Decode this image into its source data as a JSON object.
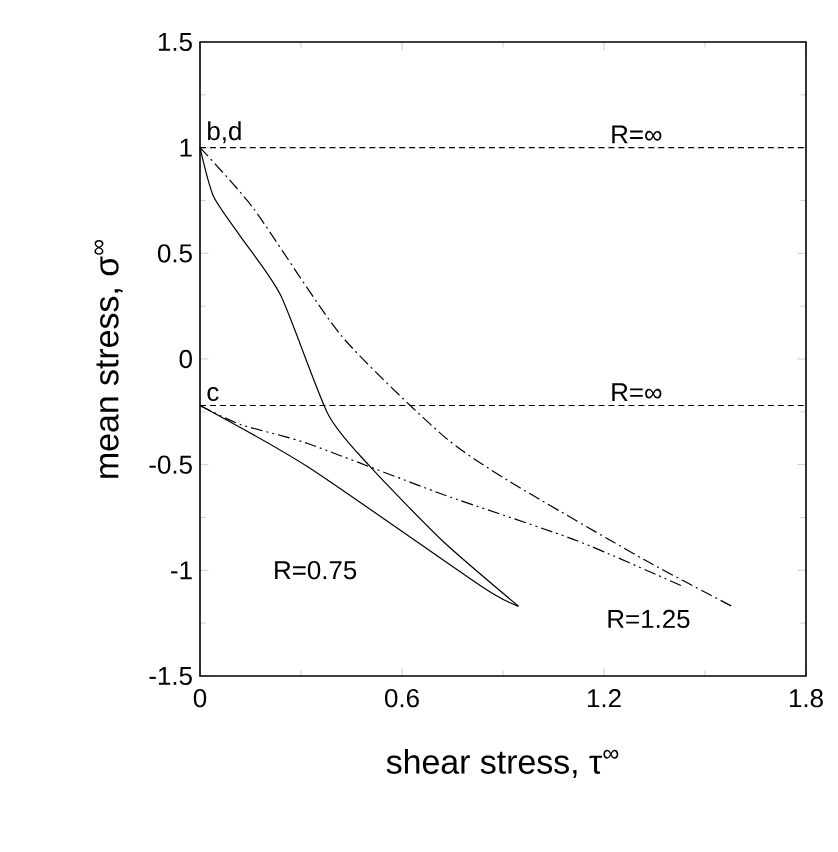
{
  "chart_data": {
    "type": "line",
    "xlabel": "shear stress, τ$^{∞}$",
    "ylabel": "mean stress, σ$^{∞}$",
    "xlim": [
      0,
      1.8
    ],
    "ylim": [
      -1.5,
      1.5
    ],
    "xticks": [
      0,
      0.6,
      1.2,
      1.8
    ],
    "yticks": [
      -1.5,
      -1,
      -0.5,
      0,
      0.5,
      1,
      1.5
    ],
    "grid": false,
    "marker": "none",
    "series": [
      {
        "color": "#000000",
        "line_style": "solid",
        "x": [
          0,
          0.04,
          0.12,
          0.24,
          0.38,
          0.5,
          0.72,
          0.946
        ],
        "values": [
          1,
          0.77,
          0.58,
          0.3,
          -0.26,
          -0.5,
          -0.86,
          -1.17
        ]
      },
      {
        "color": "#000000",
        "line_style": "solid",
        "x": [
          0,
          0.32,
          0.84,
          0.946
        ],
        "values": [
          -0.22,
          -0.51,
          -1.08,
          -1.17
        ]
      },
      {
        "color": "#000000",
        "line_style": "dashdot",
        "x": [
          0,
          0.16,
          0.42,
          0.72,
          0.92,
          1.32,
          1.58
        ],
        "values": [
          1,
          0.71,
          0.11,
          -0.36,
          -0.58,
          -0.95,
          -1.17
        ]
      },
      {
        "color": "#000000",
        "line_style": "dashdotdot",
        "x": [
          0,
          0.12,
          0.32,
          0.72,
          1.12,
          1.44
        ],
        "values": [
          -0.22,
          -0.31,
          -0.4,
          -0.64,
          -0.86,
          -1.08
        ]
      }
    ],
    "ref_lines": [
      {
        "axis": "y",
        "value": 1,
        "label": "R=∞",
        "line_style": "dashed"
      },
      {
        "axis": "y",
        "value": -0.22,
        "label": "R=∞",
        "line_style": "dashed"
      }
    ],
    "annotations": [
      {
        "text": "b,d",
        "x": 0,
        "y": 1
      },
      {
        "text": "c",
        "x": 0,
        "y": -0.22
      },
      "R=0.75",
      "R=1.25"
    ]
  }
}
